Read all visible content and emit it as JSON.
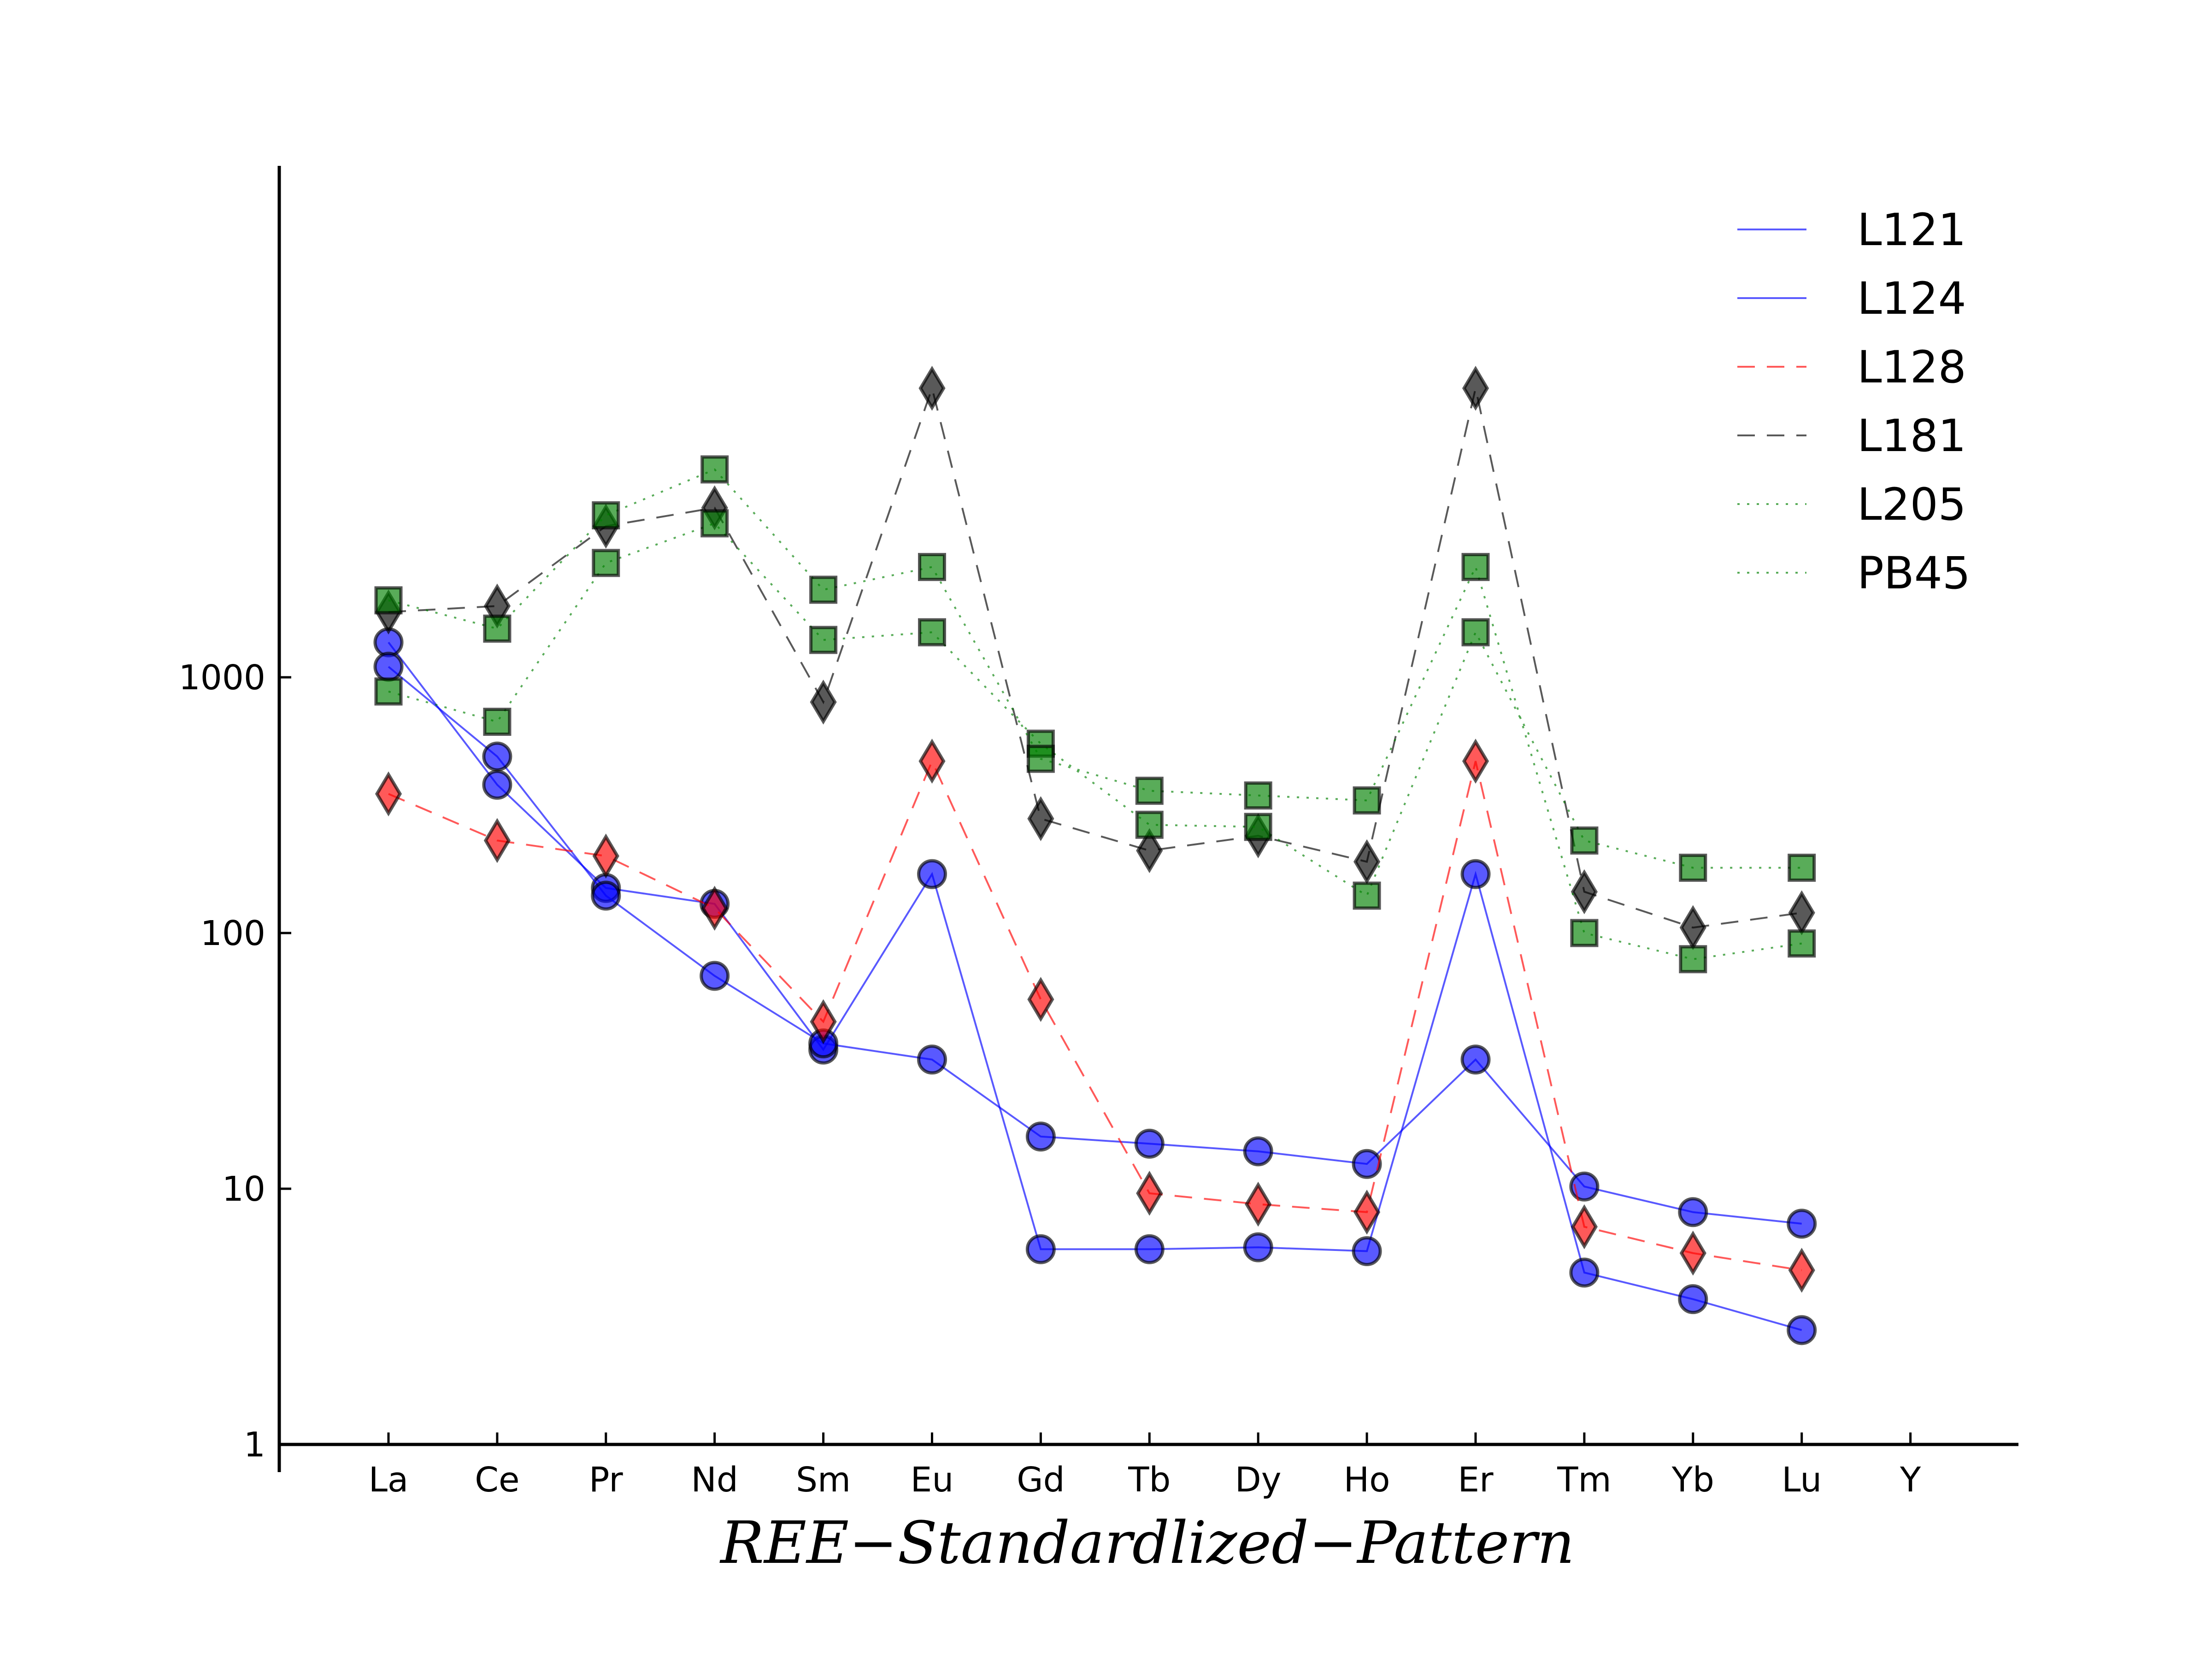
{
  "chart_data": {
    "type": "line",
    "title": "",
    "xlabel": "REE−Standardlized−Pattern",
    "ylabel": "",
    "yscale": "log",
    "ylim": [
      1,
      15000
    ],
    "y_ticks": [
      1,
      10,
      100,
      1000
    ],
    "y_tick_labels": [
      "1",
      "10",
      "100",
      "1000"
    ],
    "categories": [
      "La",
      "Ce",
      "Pr",
      "Nd",
      "Sm",
      "Eu",
      "Gd",
      "Tb",
      "Dy",
      "Ho",
      "Er",
      "Tm",
      "Yb",
      "Lu",
      "Y"
    ],
    "legend_position": "top-right",
    "grid": false,
    "series": [
      {
        "name": "L121",
        "color": "#0000ff",
        "marker": "circle",
        "linestyle": "solid",
        "values": [
          1370,
          380,
          150,
          130,
          35,
          170,
          5.8,
          5.8,
          5.9,
          5.7,
          170,
          4.7,
          3.7,
          2.8,
          null
        ]
      },
      {
        "name": "L124",
        "color": "#0000ff",
        "marker": "circle",
        "linestyle": "solid",
        "values": [
          1100,
          490,
          140,
          68,
          37,
          32,
          16,
          15,
          14,
          12.5,
          32,
          10.2,
          8.1,
          7.3,
          null
        ]
      },
      {
        "name": "L128",
        "color": "#ff0000",
        "marker": "diamond",
        "linestyle": "dashed",
        "values": [
          350,
          230,
          200,
          125,
          45,
          470,
          55,
          9.6,
          8.7,
          8.1,
          470,
          7.1,
          5.6,
          4.8,
          null
        ]
      },
      {
        "name": "L181",
        "color": "#000000",
        "marker": "diamond",
        "linestyle": "dashed",
        "values": [
          1800,
          1900,
          3900,
          4600,
          800,
          13500,
          280,
          210,
          240,
          190,
          13500,
          145,
          105,
          120,
          null
        ]
      },
      {
        "name": "L205",
        "color": "#008000",
        "marker": "square",
        "linestyle": "dotted",
        "values": [
          880,
          670,
          2800,
          4000,
          1400,
          1500,
          550,
          265,
          260,
          140,
          1500,
          230,
          180,
          180,
          null
        ]
      },
      {
        "name": "PB45",
        "color": "#008000",
        "marker": "square",
        "linestyle": "dotted",
        "values": [
          2000,
          1550,
          4300,
          6500,
          2200,
          2700,
          480,
          360,
          345,
          330,
          2700,
          100,
          79,
          91,
          null
        ]
      }
    ]
  }
}
